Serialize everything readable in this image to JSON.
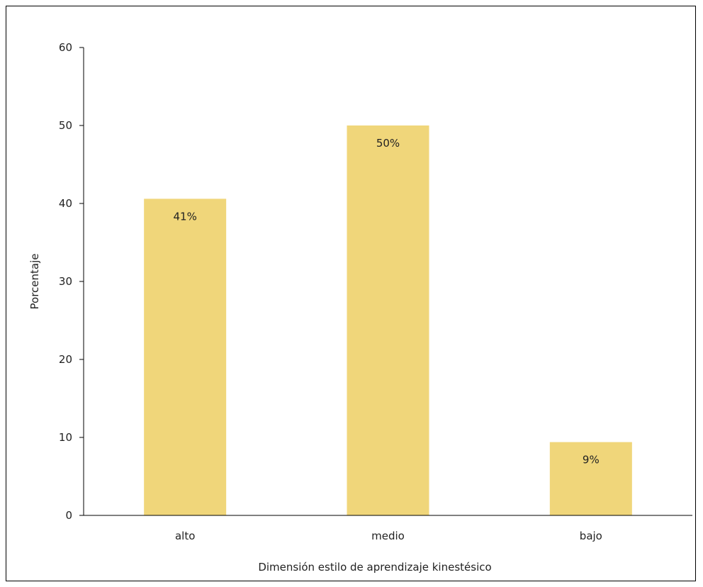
{
  "chart_data": {
    "type": "bar",
    "categories": [
      "alto",
      "medio",
      "bajo"
    ],
    "values": [
      40.6,
      50.0,
      9.4
    ],
    "data_labels": [
      "41%",
      "50%",
      "9%"
    ],
    "xlabel": "Dimensión estilo de aprendizaje kinestésico",
    "ylabel": "Porcentaje",
    "ylim": [
      0,
      60
    ],
    "yticks": [
      0,
      10,
      20,
      30,
      40,
      50,
      60
    ],
    "grid": false,
    "legend": "none",
    "bar_color": "#F0D67A"
  }
}
